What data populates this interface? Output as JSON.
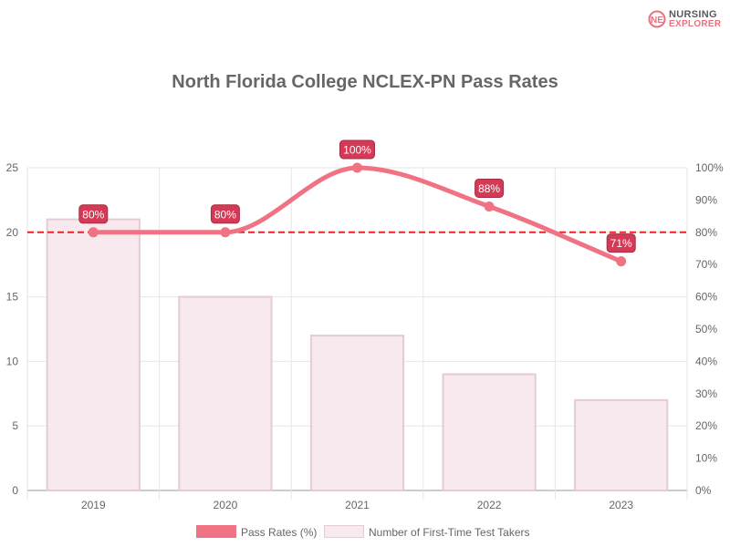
{
  "brand": {
    "logo_line1": "NURSING",
    "logo_line2": "EXPLORER"
  },
  "chart_data": {
    "type": "bar+line",
    "title": "North Florida College NCLEX-PN Pass Rates",
    "categories": [
      "2019",
      "2020",
      "2021",
      "2022",
      "2023"
    ],
    "series": [
      {
        "name": "Pass Rates (%)",
        "type": "line",
        "axis": "right",
        "values": [
          80,
          80,
          100,
          88,
          71
        ],
        "data_labels": [
          "80%",
          "80%",
          "100%",
          "88%",
          "71%"
        ],
        "color": "#f07383"
      },
      {
        "name": "Number of First-Time Test Takers",
        "type": "bar",
        "axis": "left",
        "values": [
          21,
          15,
          12,
          9,
          7
        ],
        "fill": "#f8e9ee",
        "stroke": "#e3cdd5"
      }
    ],
    "left_axis": {
      "ylim": [
        0,
        25
      ],
      "ticks": [
        "0",
        "5",
        "10",
        "15",
        "20",
        "25"
      ]
    },
    "right_axis": {
      "ylim": [
        0,
        100
      ],
      "ticks": [
        "0%",
        "10%",
        "20%",
        "30%",
        "40%",
        "50%",
        "60%",
        "70%",
        "80%",
        "90%",
        "100%"
      ]
    },
    "reference_line": {
      "value": 80,
      "axis": "right",
      "style": "dashed",
      "color": "#e8232a"
    },
    "grid": true,
    "legend_position": "bottom"
  }
}
